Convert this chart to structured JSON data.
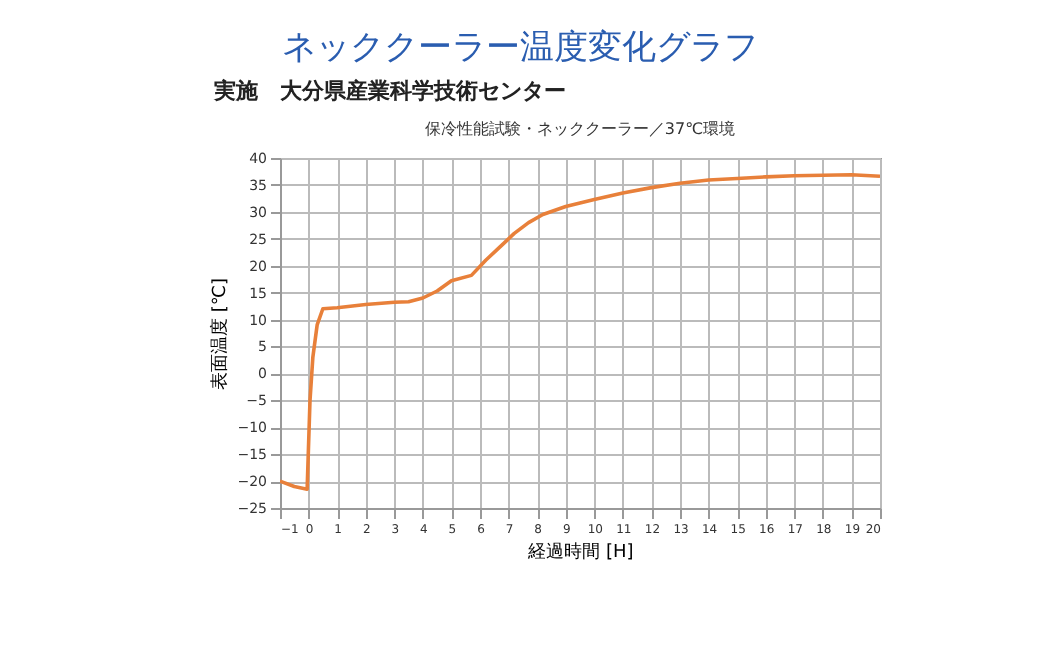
{
  "chart_data": {
    "type": "line",
    "title": "ネッククーラー温度変化グラフ",
    "subtitle": "実施　大分県産業科学技術センター",
    "annotations": [
      "保冷性能試験・ネッククーラー／37℃環境"
    ],
    "xlabel": "経過時間 [H]",
    "ylabel": "表面温度 [℃]",
    "x": [
      -1,
      -0.5,
      -0.05,
      0.05,
      0.15,
      0.3,
      0.5,
      1,
      2,
      3,
      3.5,
      4,
      4.5,
      5,
      5.7,
      6.2,
      6.7,
      7.2,
      7.7,
      8.2,
      9,
      10,
      11,
      12,
      13,
      14,
      15,
      16,
      17,
      18,
      19,
      20
    ],
    "series": [
      {
        "color": "#e8803a",
        "values": [
          -20,
          -21,
          -21.5,
          -5,
          3,
          9,
          12,
          12.2,
          12.8,
          13.2,
          13.3,
          14,
          15.3,
          17.2,
          18.2,
          21,
          23.5,
          26,
          28,
          29.5,
          31,
          32.3,
          33.5,
          34.5,
          35.3,
          35.9,
          36.2,
          36.5,
          36.7,
          36.8,
          36.9,
          36.6
        ]
      }
    ],
    "xlim": [
      -1,
      20
    ],
    "xticks": [
      -1,
      0,
      1,
      2,
      3,
      4,
      5,
      6,
      7,
      8,
      9,
      10,
      11,
      12,
      13,
      14,
      15,
      16,
      17,
      18,
      19,
      20
    ],
    "ylim": [
      -25,
      40
    ],
    "yticks": [
      -25,
      -20,
      -15,
      -10,
      -5,
      0,
      5,
      10,
      15,
      20,
      25,
      30,
      35,
      40
    ],
    "grid": true
  }
}
